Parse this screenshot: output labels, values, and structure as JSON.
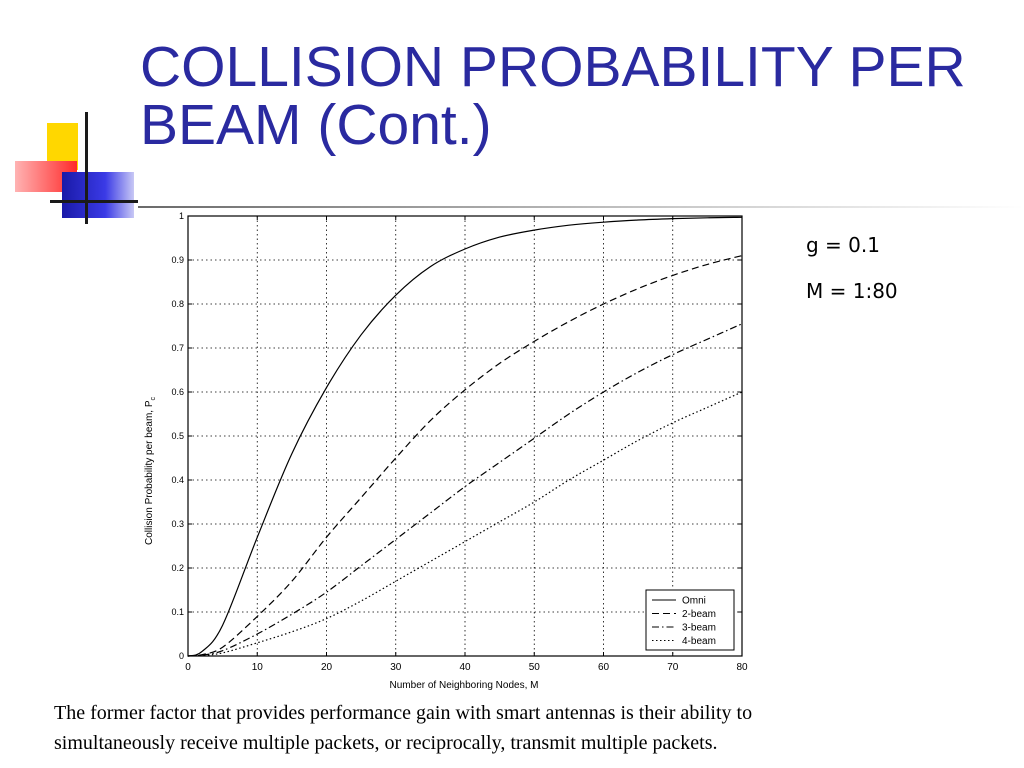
{
  "slide": {
    "title_line1": "COLLISION PROBABILITY PER",
    "title_line2": "BEAM (Cont.)",
    "param_g": "g = 0.1",
    "param_m": "M = 1:80",
    "caption_line1": "The former factor that provides performance gain with smart antennas is their ability to",
    "caption_line2": "simultaneously receive multiple packets, or reciprocally, transmit multiple packets.",
    "colors": {
      "title": "#2a2aa0",
      "accent_yellow": "#ffd700",
      "accent_red": "#ff2a2a",
      "accent_blue": "#2a2ad0"
    }
  },
  "chart_data": {
    "type": "line",
    "xlabel": "Number of Neighboring Nodes, M",
    "ylabel": "Collision Probability per beam, P",
    "ylabel_subscript": "c",
    "xlim": [
      0,
      80
    ],
    "ylim": [
      0,
      1
    ],
    "xticks": [
      0,
      10,
      20,
      30,
      40,
      50,
      60,
      70,
      80
    ],
    "yticks": [
      0,
      0.1,
      0.2,
      0.3,
      0.4,
      0.5,
      0.6,
      0.7,
      0.8,
      0.9,
      1
    ],
    "grid": true,
    "legend_position": "bottom-right",
    "x": [
      0,
      2,
      5,
      10,
      15,
      20,
      25,
      30,
      35,
      40,
      45,
      50,
      55,
      60,
      65,
      70,
      75,
      80
    ],
    "series": [
      {
        "name": "Omni",
        "dash": "solid",
        "values": [
          0,
          0.01,
          0.07,
          0.27,
          0.46,
          0.61,
          0.73,
          0.82,
          0.885,
          0.925,
          0.952,
          0.968,
          0.979,
          0.986,
          0.991,
          0.994,
          0.996,
          0.997
        ]
      },
      {
        "name": "2-beam",
        "dash": "dashed",
        "values": [
          0,
          0.003,
          0.02,
          0.09,
          0.17,
          0.27,
          0.36,
          0.45,
          0.535,
          0.605,
          0.665,
          0.715,
          0.76,
          0.8,
          0.835,
          0.865,
          0.89,
          0.91
        ]
      },
      {
        "name": "3-beam",
        "dash": "dashdot",
        "values": [
          0,
          0.002,
          0.012,
          0.05,
          0.095,
          0.145,
          0.205,
          0.265,
          0.325,
          0.385,
          0.44,
          0.495,
          0.55,
          0.6,
          0.645,
          0.685,
          0.72,
          0.755
        ]
      },
      {
        "name": "4-beam",
        "dash": "dotted",
        "values": [
          0,
          0.001,
          0.007,
          0.03,
          0.055,
          0.085,
          0.125,
          0.17,
          0.215,
          0.26,
          0.305,
          0.35,
          0.4,
          0.445,
          0.49,
          0.53,
          0.565,
          0.6
        ]
      }
    ]
  }
}
